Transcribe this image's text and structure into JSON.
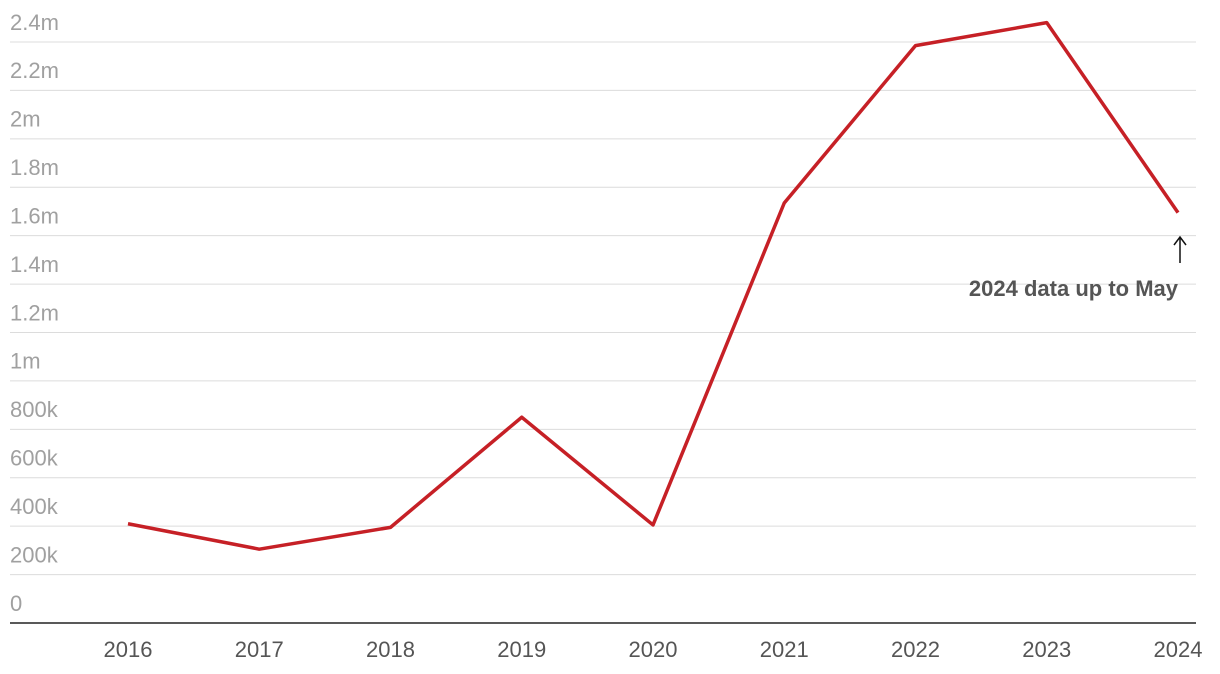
{
  "chart_data": {
    "type": "line",
    "x": [
      2016,
      2017,
      2018,
      2019,
      2020,
      2021,
      2022,
      2023,
      2024
    ],
    "values": [
      410000,
      305000,
      395000,
      850000,
      405000,
      1735000,
      2385000,
      2480000,
      1695000
    ],
    "color": "#c62026",
    "xlim": [
      2016,
      2024
    ],
    "xticks": [
      2016,
      2017,
      2018,
      2019,
      2020,
      2021,
      2022,
      2023,
      2024
    ],
    "ylim": [
      0,
      2400000
    ],
    "yticks": [
      0,
      {
        "value": 200000,
        "label": "200k"
      },
      {
        "value": 400000,
        "label": "400k"
      },
      {
        "value": 600000,
        "label": "600k"
      },
      {
        "value": 800000,
        "label": "800k"
      },
      {
        "value": 1000000,
        "label": "1m"
      },
      {
        "value": 1200000,
        "label": "1.2m"
      },
      {
        "value": 1400000,
        "label": "1.4m"
      },
      {
        "value": 1600000,
        "label": "1.6m"
      },
      {
        "value": 1800000,
        "label": "1.8m"
      },
      {
        "value": 2000000,
        "label": "2m"
      },
      {
        "value": 2200000,
        "label": "2.2m"
      },
      {
        "value": 2400000,
        "label": "2.4m"
      }
    ],
    "grid": true,
    "annotation": "2024 data up to May"
  }
}
